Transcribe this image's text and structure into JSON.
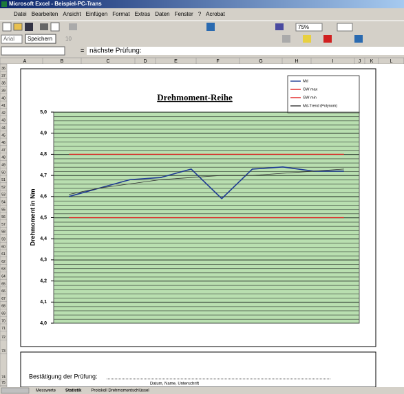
{
  "window": {
    "title": "Microsoft Excel - Beispiel-PC-Trans"
  },
  "menu": [
    "Datei",
    "Bearbeiten",
    "Ansicht",
    "Einfügen",
    "Format",
    "Extras",
    "Daten",
    "Fenster",
    "?",
    "Acrobat"
  ],
  "toolbar": {
    "zoom": "75%"
  },
  "format_toolbar": {
    "font": "Arial",
    "style": "Speichern",
    "size": "10"
  },
  "formula_bar": {
    "equals": "=",
    "content": "nächste Prüfung:"
  },
  "columns": [
    "A",
    "B",
    "C",
    "D",
    "E",
    "F",
    "G",
    "H",
    "I",
    "J",
    "K",
    "L"
  ],
  "rows": [
    36,
    37,
    38,
    39,
    40,
    41,
    42,
    43,
    44,
    45,
    46,
    47,
    48,
    49,
    50,
    51,
    52,
    53,
    54,
    55,
    56,
    57,
    58,
    59,
    60,
    61,
    62,
    63,
    64,
    65,
    66,
    67,
    68,
    69,
    70,
    71,
    72,
    73,
    74,
    75
  ],
  "chart_data": {
    "type": "line",
    "title": "Drehmoment-Reihe",
    "y_label": "Drehmoment in Nm",
    "categories": [
      null,
      null,
      null,
      null,
      null,
      null,
      null,
      null,
      null,
      null
    ],
    "series": [
      {
        "name": "Md",
        "color": "#1f3a93",
        "values": [
          4.6,
          4.64,
          4.68,
          4.69,
          4.73,
          4.59,
          4.73,
          4.74,
          4.72,
          4.72
        ]
      },
      {
        "name": "GW max",
        "color": "#e02020",
        "values": [
          4.8,
          4.8,
          4.8,
          4.8,
          4.8,
          4.8,
          4.8,
          4.8,
          4.8,
          4.8
        ]
      },
      {
        "name": "GW min",
        "color": "#e02020",
        "values": [
          4.5,
          4.5,
          4.5,
          4.5,
          4.5,
          4.5,
          4.5,
          4.5,
          4.5,
          4.5
        ]
      },
      {
        "name": "Md-Trend (Polynom)",
        "color": "#333333",
        "values": [
          4.61,
          4.64,
          4.66,
          4.68,
          4.69,
          4.7,
          4.7,
          4.71,
          4.72,
          4.73
        ]
      }
    ],
    "ylim": [
      4.0,
      5.0
    ],
    "yticks": [
      {
        "value": 4.0,
        "label": "4,0"
      },
      {
        "value": 4.1,
        "label": "4,1"
      },
      {
        "value": 4.2,
        "label": "4,2"
      },
      {
        "value": 4.3,
        "label": "4,3"
      },
      {
        "value": 4.4,
        "label": "4,4"
      },
      {
        "value": 4.5,
        "label": "4,5"
      },
      {
        "value": 4.6,
        "label": "4,6"
      },
      {
        "value": 4.7,
        "label": "4,7"
      },
      {
        "value": 4.8,
        "label": "4,8"
      },
      {
        "value": 4.9,
        "label": "4,9"
      },
      {
        "value": 5.0,
        "label": "5,0"
      }
    ],
    "grid": true,
    "legend": "top-right"
  },
  "footer": {
    "confirmation": "Bestätigung der Prüfung:",
    "signature": "Datum, Name, Unterschrift"
  },
  "sheet_tabs": [
    "Messwerte",
    "Statistik",
    "Protokoll Drehmomentschlüssel"
  ]
}
